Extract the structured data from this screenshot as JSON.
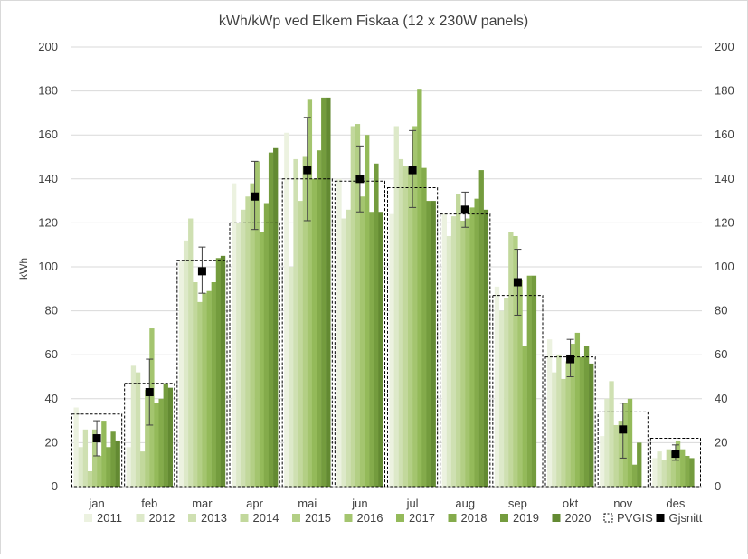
{
  "chart_data": {
    "type": "bar",
    "title": "kWh/kWp ved Elkem  Fiskaa (12 x 230W panels)",
    "ylabel": "kWh",
    "ylim": [
      0,
      200
    ],
    "yticks": [
      0,
      20,
      40,
      60,
      80,
      100,
      120,
      140,
      160,
      180,
      200
    ],
    "right_axis": true,
    "grid": true,
    "legend_position": "bottom",
    "categories": [
      "jan",
      "feb",
      "mar",
      "apr",
      "mai",
      "jun",
      "jul",
      "aug",
      "sep",
      "okt",
      "nov",
      "des"
    ],
    "series": [
      {
        "name": "2011",
        "color": "#ecf2e0",
        "values": [
          36,
          18,
          103,
          138,
          161,
          140,
          124,
          124,
          91,
          67,
          23,
          13
        ]
      },
      {
        "name": "2012",
        "color": "#dde9c9",
        "values": [
          18,
          55,
          112,
          120,
          100,
          122,
          164,
          114,
          80,
          52,
          40,
          16
        ]
      },
      {
        "name": "2013",
        "color": "#cfe0b2",
        "values": [
          26,
          52,
          122,
          126,
          149,
          126,
          149,
          123,
          86,
          60,
          48,
          12
        ]
      },
      {
        "name": "2014",
        "color": "#c2d89c",
        "values": [
          7,
          16,
          93,
          132,
          130,
          164,
          146,
          133,
          116,
          49,
          28,
          17
        ]
      },
      {
        "name": "2015",
        "color": "#b3cf85",
        "values": [
          26,
          44,
          84,
          138,
          150,
          165,
          145,
          121,
          114,
          57,
          30,
          16
        ]
      },
      {
        "name": "2016",
        "color": "#a4c56f",
        "values": [
          14,
          72,
          88,
          148,
          176,
          132,
          164,
          122,
          94,
          65,
          38,
          21
        ]
      },
      {
        "name": "2017",
        "color": "#94ba5a",
        "values": [
          30,
          38,
          89,
          116,
          140,
          160,
          181,
          127,
          64,
          70,
          40,
          17
        ]
      },
      {
        "name": "2018",
        "color": "#84ab4b",
        "values": [
          18,
          40,
          93,
          129,
          153,
          125,
          145,
          131,
          96,
          59,
          10,
          14
        ]
      },
      {
        "name": "2019",
        "color": "#749c3e",
        "values": [
          25,
          47,
          104,
          152,
          177,
          147,
          130,
          144,
          96,
          64,
          20,
          13
        ]
      },
      {
        "name": "2020",
        "color": "#638a32",
        "values": [
          21,
          45,
          105,
          154,
          177,
          125,
          130,
          126,
          0,
          56,
          0,
          0
        ]
      }
    ],
    "pvgis": {
      "name": "PVGIS",
      "values": [
        33,
        47,
        103,
        120,
        140,
        139,
        136,
        124,
        87,
        59,
        34,
        22
      ]
    },
    "gjsnitt": {
      "name": "Gjsnitt",
      "values": [
        22,
        43,
        98,
        132,
        144,
        140,
        144,
        126,
        93,
        58,
        26,
        15
      ]
    },
    "error_bars": [
      [
        14,
        30
      ],
      [
        28,
        58
      ],
      [
        88,
        109
      ],
      [
        117,
        148
      ],
      [
        121,
        168
      ],
      [
        125,
        155
      ],
      [
        127,
        162
      ],
      [
        118,
        134
      ],
      [
        78,
        108
      ],
      [
        50,
        67
      ],
      [
        13,
        38
      ],
      [
        12,
        19
      ]
    ]
  }
}
